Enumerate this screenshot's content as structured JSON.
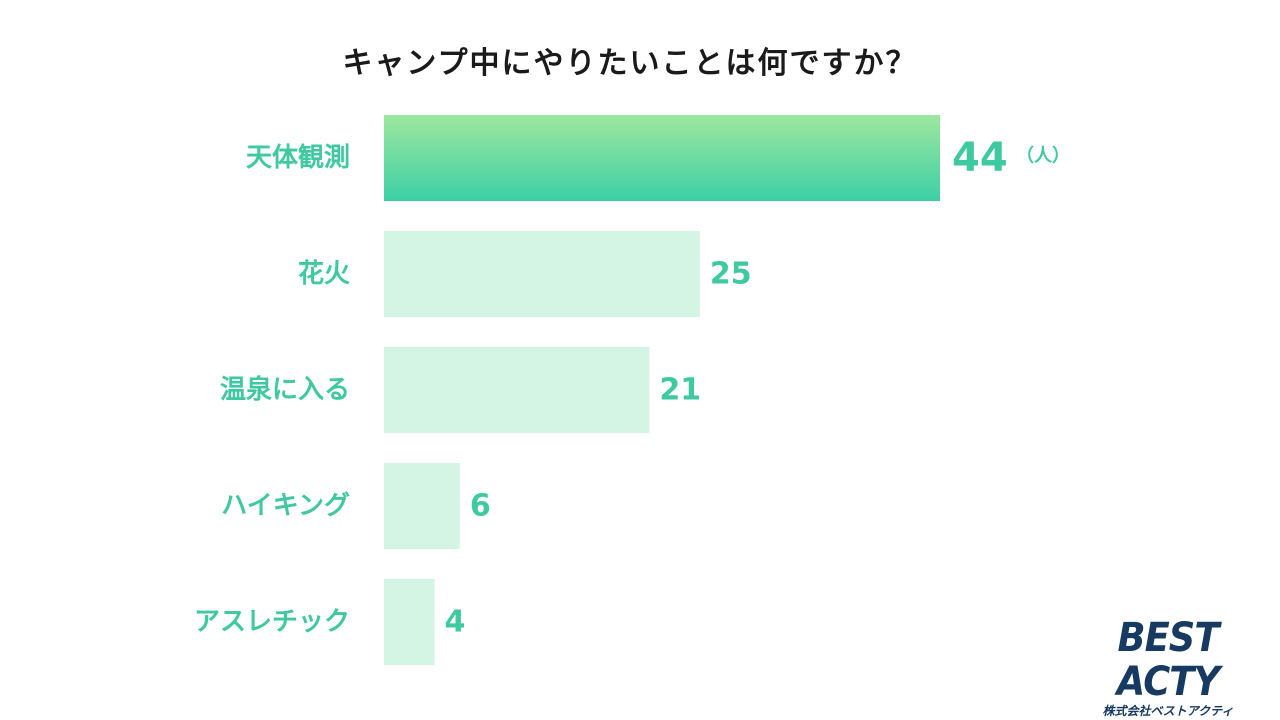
{
  "chart_data": {
    "type": "bar",
    "orientation": "horizontal",
    "title": "キャンプ中にやりたいことは何ですか？",
    "categories": [
      "天体観測",
      "花火",
      "温泉に入る",
      "ハイキング",
      "アスレチック"
    ],
    "values": [
      44,
      25,
      21,
      6,
      4
    ],
    "unit_label": "（人）",
    "xlim": [
      0,
      44
    ],
    "grid": false,
    "legend": "none",
    "colors": {
      "highlight_top": "#9ee79f",
      "highlight_bottom": "#3ccfa6",
      "bar": "#d4f5e4",
      "label": "#3ec9a0"
    }
  },
  "logo": {
    "main": "BEST ACTY",
    "sub": "株式会社ベストアクティ"
  }
}
